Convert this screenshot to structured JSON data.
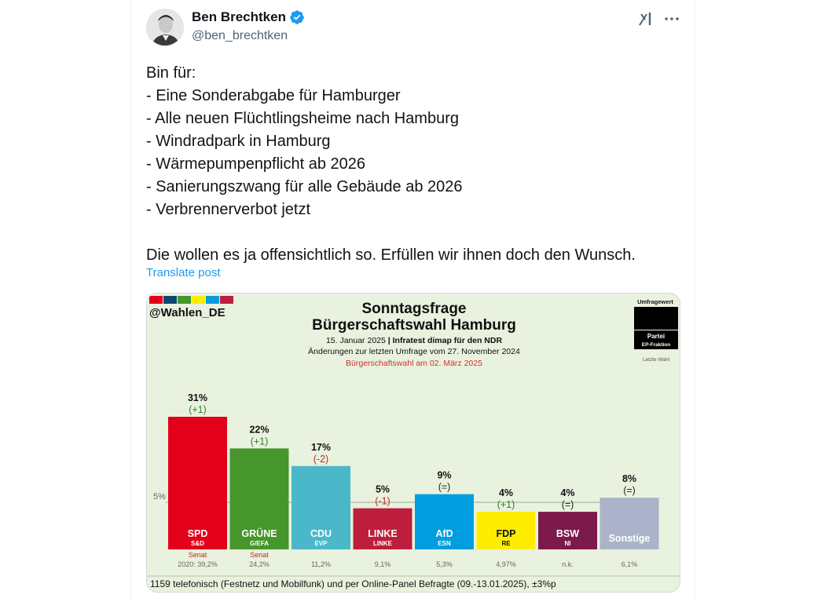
{
  "author": {
    "name": "Ben Brechtken",
    "handle": "@ben_brechtken"
  },
  "icons": {
    "verified": "verified-badge-icon",
    "grok": "grok-icon",
    "more": "more-options-icon"
  },
  "colors": {
    "verified": "#1d9bf0",
    "link": "#1d9bf0",
    "secondary_text": "#536471",
    "chart_background": "#e9f2de"
  },
  "post": {
    "lines": [
      "Bin für:",
      "- Eine Sonderabgabe für Hamburger",
      "- Alle neuen Flüchtlingsheime nach Hamburg",
      "- Windradpark in Hamburg",
      "- Wärmepumpenpflicht ab 2026",
      "- Sanierungszwang für alle Gebäude ab 2026",
      "- Verbrennerverbot jetzt"
    ],
    "closing": "Die wollen es ja offensichtlich so. Erfüllen wir ihnen doch den Wunsch.",
    "translate_label": "Translate post"
  },
  "chart_data": {
    "type": "bar",
    "source_tag": "@Wahlen_DE",
    "title": "Sonntagsfrage",
    "subtitle": "Bürgerschaftswahl Hamburg",
    "date_line_1": "15. Januar 2025",
    "date_line_2": "Infratest dimap für den NDR",
    "change_note": "Änderungen zur letzten Umfrage vom 27. November 2024",
    "election_note": "Bürgerschaftswahl am 02. März 2025",
    "legend": {
      "umfragewert": "Umfragewert",
      "partei": "Partei",
      "fraktion": "EP-Fraktion",
      "letzte_wahl": "Letzte Wahl"
    },
    "threshold_label": "5%",
    "threshold": 5,
    "ylim": [
      0,
      35
    ],
    "parties": [
      {
        "name": "SPD",
        "group": "S&D",
        "value": 31,
        "value_label": "31%",
        "change": "(+1)",
        "change_color": "#2e7d32",
        "color": "#e3001b",
        "note": "Senat",
        "last": "2020: 39,2%"
      },
      {
        "name": "GRÜNE",
        "group": "G/EFA",
        "value": 22,
        "value_label": "22%",
        "change": "(+1)",
        "change_color": "#2e7d32",
        "color": "#46962b",
        "note": "Senat",
        "last": "24,2%"
      },
      {
        "name": "CDU",
        "group": "EVP",
        "value": 17,
        "value_label": "17%",
        "change": "(-2)",
        "change_color": "#c62828",
        "color": "#4ab8c8",
        "note": "",
        "last": "11,2%"
      },
      {
        "name": "LINKE",
        "group": "LINKE",
        "value": 5,
        "value_label": "5%",
        "change": "(-1)",
        "change_color": "#c62828",
        "color": "#be1e3c",
        "note": "",
        "last": "9,1%"
      },
      {
        "name": "AfD",
        "group": "ESN",
        "value": 9,
        "value_label": "9%",
        "change": "(=)",
        "change_color": "#222222",
        "color": "#009ee0",
        "note": "",
        "last": "5,3%"
      },
      {
        "name": "FDP",
        "group": "RE",
        "value": 4,
        "value_label": "4%",
        "change": "(+1)",
        "change_color": "#2e7d32",
        "color": "#ffed00",
        "note": "",
        "last": "4,97%"
      },
      {
        "name": "BSW",
        "group": "NI",
        "value": 4,
        "value_label": "4%",
        "change": "(=)",
        "change_color": "#222222",
        "color": "#7b1a4b",
        "note": "",
        "last": "n.k."
      },
      {
        "name": "Sonstige",
        "group": "",
        "value": 8,
        "value_label": "8%",
        "change": "(=)",
        "change_color": "#222222",
        "color": "#aab3c9",
        "note": "",
        "last": "6,1%"
      }
    ],
    "footer": "1159 telefonisch (Festnetz und Mobilfunk) und per Online-Panel Befragte (09.-13.01.2025), ±3%p"
  }
}
